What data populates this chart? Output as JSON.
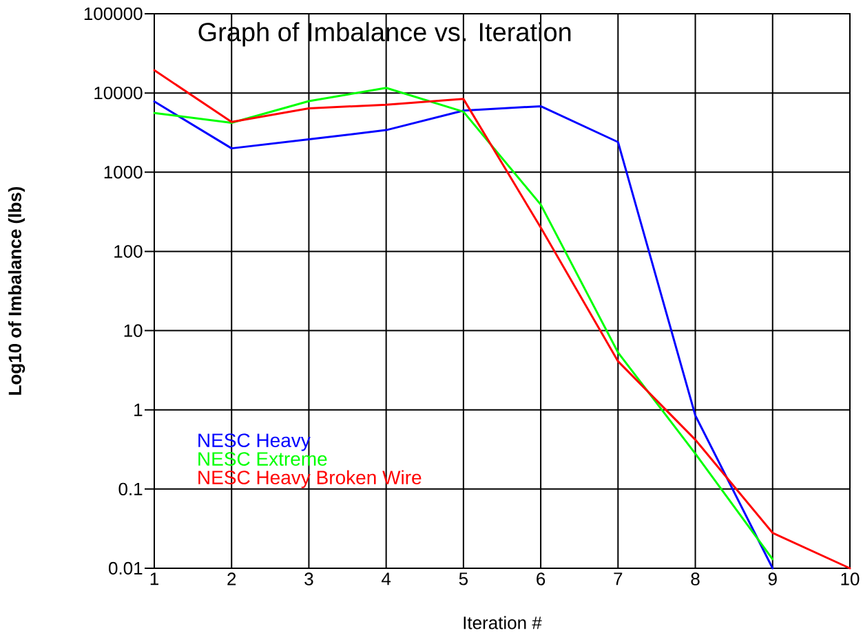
{
  "chart_data": {
    "type": "line",
    "title": "Graph of Imbalance vs. Iteration",
    "xlabel": "Iteration #",
    "ylabel": "Log10 of Imbalance (lbs)",
    "x": [
      1,
      2,
      3,
      4,
      5,
      6,
      7,
      8,
      9,
      10
    ],
    "series": [
      {
        "name": "NESC Heavy",
        "color": "#0000ff",
        "values": [
          7800,
          2000,
          2600,
          3400,
          6000,
          6800,
          2400,
          0.85,
          0.01,
          null
        ]
      },
      {
        "name": "NESC Extreme",
        "color": "#00ff00",
        "values": [
          5600,
          4200,
          7900,
          11600,
          5800,
          390,
          5.3,
          0.28,
          0.013,
          null
        ]
      },
      {
        "name": "NESC Heavy Broken Wire",
        "color": "#ff0000",
        "values": [
          19400,
          4300,
          6400,
          7100,
          8400,
          200,
          4.1,
          0.42,
          0.028,
          0.01
        ]
      }
    ],
    "xlim": [
      1,
      10
    ],
    "ylim": [
      0.01,
      100000
    ],
    "xticks": [
      1,
      2,
      3,
      4,
      5,
      6,
      7,
      8,
      9,
      10
    ],
    "yticks": [
      0.01,
      0.1,
      1,
      10,
      100,
      1000,
      10000,
      100000
    ],
    "log": "y",
    "grid": true,
    "legend": "bottom left",
    "line_style": "solid"
  }
}
